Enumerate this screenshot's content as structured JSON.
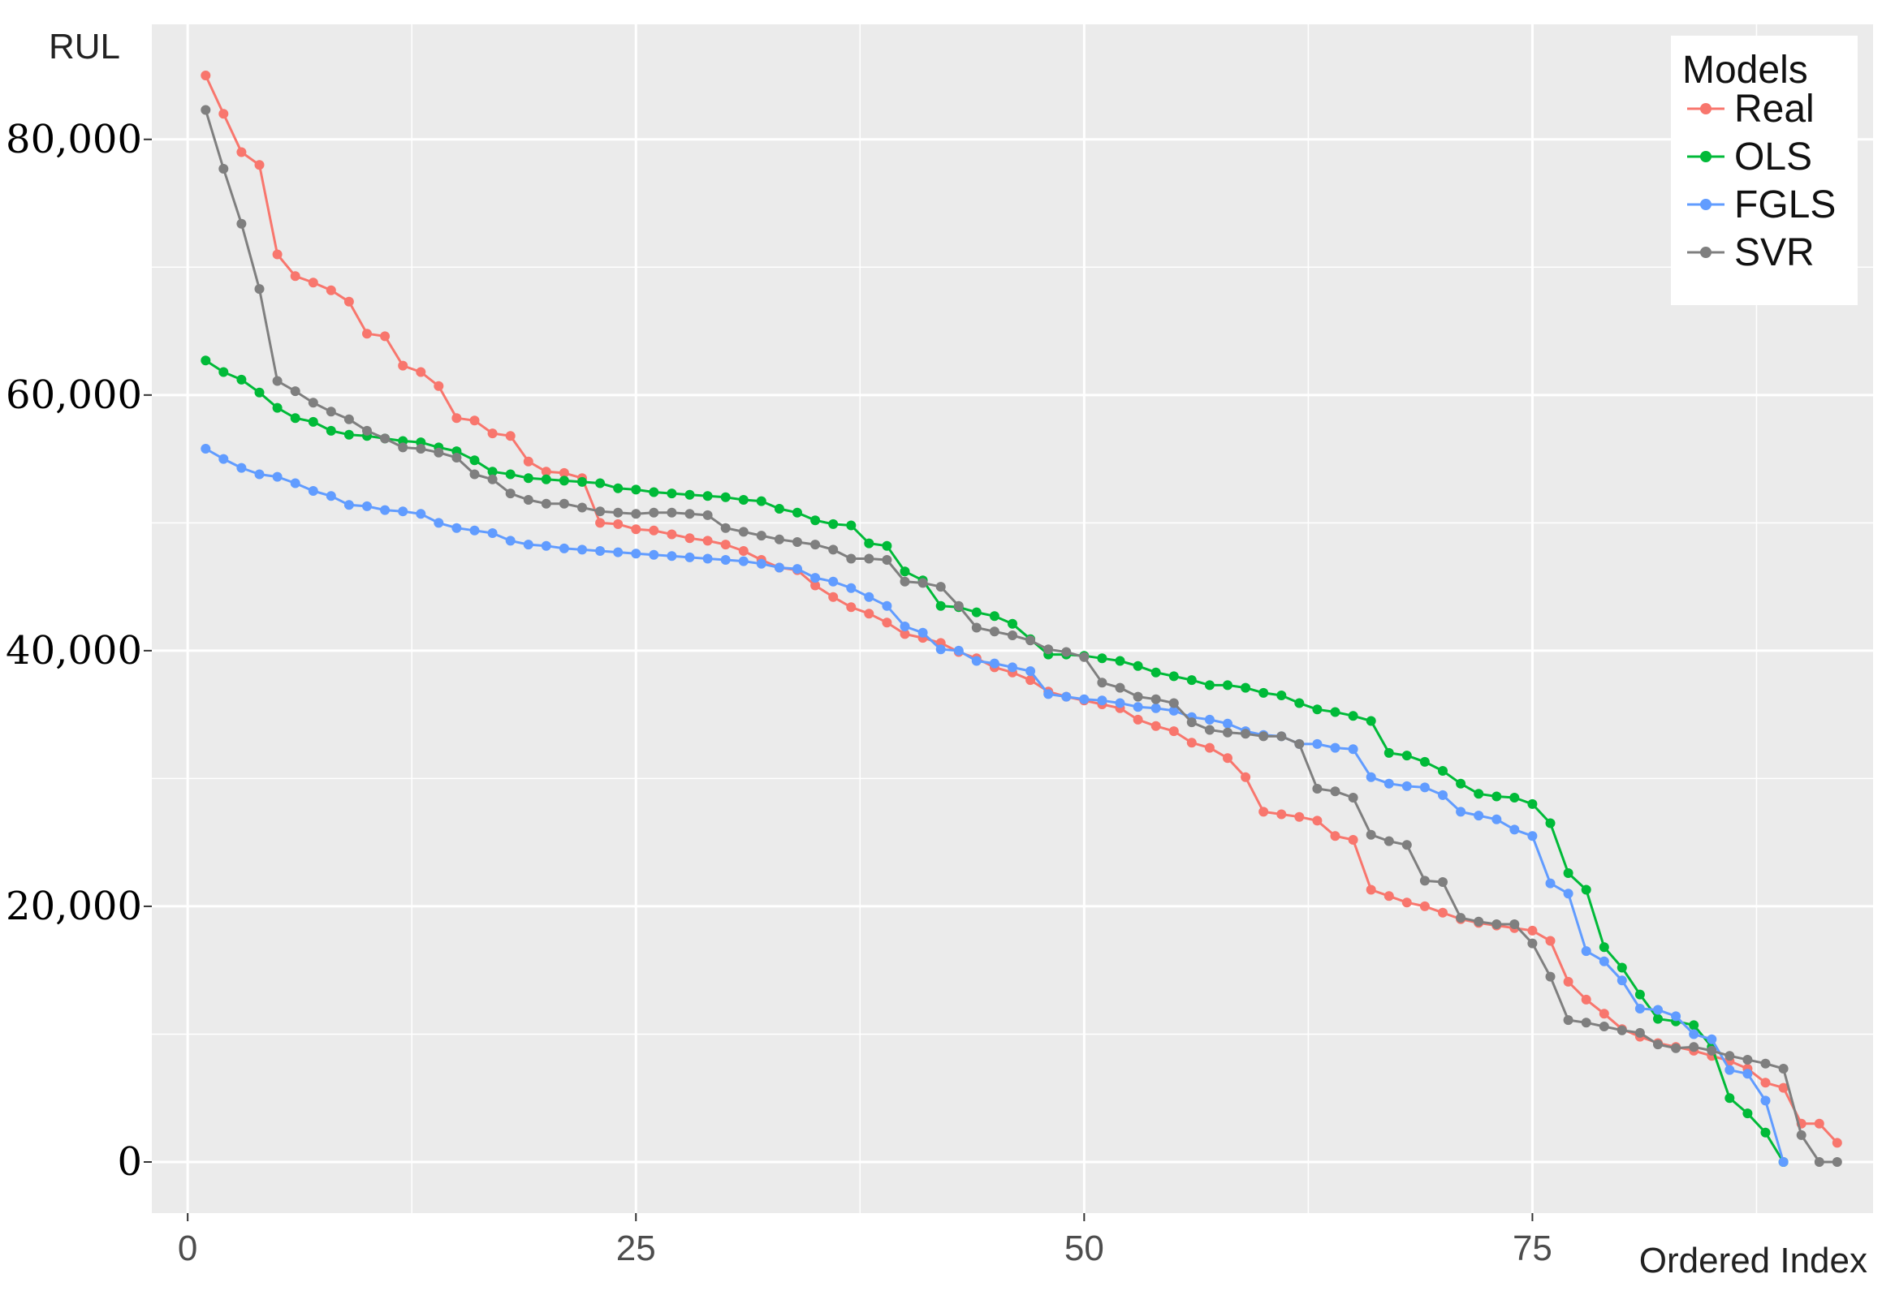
{
  "chart_data": {
    "type": "line",
    "title": "",
    "xlabel": "Ordered Index",
    "ylabel": "RUL",
    "xlim": [
      -2,
      94
    ],
    "ylim": [
      -4000,
      89000
    ],
    "x_ticks": [
      0,
      25,
      50,
      75
    ],
    "x_tick_labels": [
      "0",
      "25",
      "50",
      "75"
    ],
    "y_ticks": [
      0,
      20000,
      40000,
      60000,
      80000
    ],
    "y_tick_labels": [
      "0",
      "20,000",
      "40,000",
      "60,000",
      "80,000"
    ],
    "grid": true,
    "legend_title": "Models",
    "legend_position": "top-right",
    "colors": {
      "panel_background": "#ebebeb",
      "gridline": "#ffffff"
    },
    "series": [
      {
        "name": "Real",
        "color": "#f8766d",
        "values": [
          85000,
          82000,
          79000,
          78000,
          71000,
          69300,
          68800,
          68200,
          67300,
          64800,
          64600,
          62300,
          61800,
          60700,
          58200,
          58000,
          57000,
          56800,
          54800,
          54000,
          53900,
          53500,
          50000,
          49900,
          49500,
          49400,
          49100,
          48800,
          48600,
          48300,
          47800,
          47100,
          46500,
          46300,
          45100,
          44200,
          43400,
          42900,
          42200,
          41300,
          41000,
          40600,
          39900,
          39400,
          38700,
          38300,
          37700,
          36800,
          36400,
          36100,
          35800,
          35500,
          34600,
          34100,
          33700,
          32800,
          32400,
          31600,
          30100,
          27400,
          27200,
          27000,
          26700,
          25500,
          25200,
          21300,
          20800,
          20300,
          20000,
          19500,
          19000,
          18700,
          18500,
          18300,
          18100,
          17300,
          14100,
          12700,
          11600,
          10400,
          9800,
          9300,
          9000,
          8700,
          8300,
          7900,
          7300,
          6200,
          5800,
          3000,
          3000,
          1500
        ]
      },
      {
        "name": "OLS",
        "color": "#00ba38",
        "values": [
          62700,
          61800,
          61200,
          60200,
          59000,
          58200,
          57900,
          57200,
          56900,
          56800,
          56600,
          56400,
          56300,
          55900,
          55600,
          54900,
          54000,
          53800,
          53500,
          53400,
          53300,
          53200,
          53100,
          52700,
          52600,
          52400,
          52300,
          52200,
          52100,
          52000,
          51800,
          51700,
          51100,
          50800,
          50200,
          49900,
          49800,
          48400,
          48200,
          46200,
          45500,
          43500,
          43400,
          43000,
          42700,
          42100,
          40900,
          39700,
          39700,
          39600,
          39400,
          39200,
          38800,
          38300,
          38000,
          37700,
          37300,
          37300,
          37100,
          36700,
          36500,
          35900,
          35400,
          35200,
          34900,
          34500,
          32000,
          31800,
          31300,
          30600,
          29600,
          28800,
          28600,
          28500,
          28000,
          26500,
          22600,
          21300,
          16800,
          15200,
          13100,
          11200,
          11000,
          10700,
          9000,
          5000,
          3800,
          2300,
          0
        ]
      },
      {
        "name": "FGLS",
        "color": "#619cff",
        "values": [
          55800,
          55000,
          54300,
          53800,
          53600,
          53100,
          52500,
          52100,
          51400,
          51300,
          51000,
          50900,
          50700,
          50000,
          49600,
          49400,
          49200,
          48600,
          48300,
          48200,
          48000,
          47900,
          47800,
          47700,
          47600,
          47500,
          47400,
          47300,
          47200,
          47100,
          47000,
          46800,
          46500,
          46400,
          45700,
          45400,
          44900,
          44200,
          43500,
          41900,
          41400,
          40100,
          40000,
          39200,
          39000,
          38700,
          38400,
          36600,
          36400,
          36200,
          36100,
          35900,
          35600,
          35500,
          35300,
          34800,
          34600,
          34300,
          33700,
          33400,
          33300,
          32700,
          32700,
          32400,
          32300,
          30100,
          29600,
          29400,
          29300,
          28700,
          27400,
          27100,
          26800,
          26000,
          25500,
          21800,
          21000,
          16500,
          15700,
          14200,
          12000,
          11900,
          11400,
          10000,
          9600,
          7200,
          6900,
          4800,
          0
        ]
      },
      {
        "name": "SVR",
        "color": "#7f7f7f",
        "values": [
          82300,
          77700,
          73400,
          68300,
          61100,
          60300,
          59400,
          58700,
          58100,
          57200,
          56600,
          55900,
          55800,
          55500,
          55100,
          53800,
          53400,
          52300,
          51800,
          51500,
          51500,
          51200,
          50900,
          50800,
          50700,
          50800,
          50800,
          50700,
          50600,
          49600,
          49300,
          49000,
          48700,
          48500,
          48300,
          47900,
          47200,
          47200,
          47100,
          45400,
          45300,
          45000,
          43500,
          41800,
          41500,
          41200,
          40800,
          40100,
          39900,
          39500,
          37500,
          37100,
          36400,
          36200,
          35900,
          34400,
          33800,
          33600,
          33500,
          33300,
          33300,
          32700,
          29200,
          29000,
          28500,
          25600,
          25100,
          24800,
          22000,
          21900,
          19100,
          18800,
          18600,
          18600,
          17100,
          14500,
          11100,
          10900,
          10600,
          10300,
          10100,
          9200,
          8900,
          9000,
          8700,
          8300,
          8000,
          7700,
          7300,
          2100,
          0,
          0
        ]
      }
    ]
  }
}
